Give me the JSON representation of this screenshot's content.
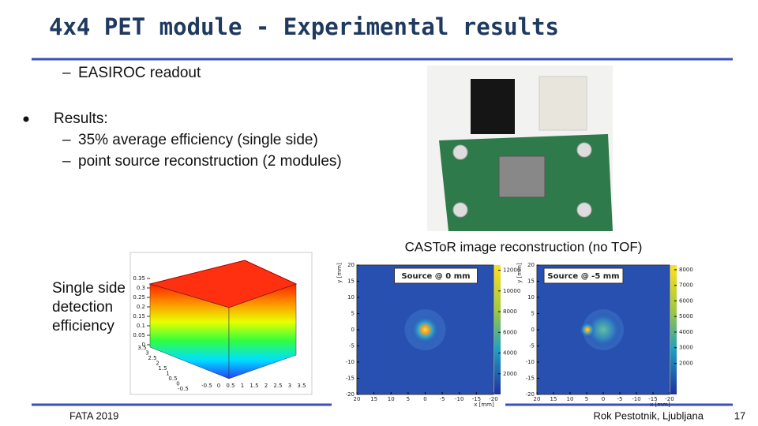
{
  "header": {
    "title": "4x4 PET module - Experimental results"
  },
  "bullets": {
    "sub_top": "EASIROC readout",
    "main": "Results:",
    "sub": [
      "35% average efficiency (single side)",
      "point source reconstruction (2 modules)"
    ]
  },
  "caption": "CASToR image reconstruction (no TOF)",
  "efficiency_label": [
    "Single side",
    "detection",
    "efficiency"
  ],
  "efficiency_plot": {
    "zticks": [
      0.35,
      0.3,
      0.25,
      0.2,
      0.15,
      0.1,
      0.05,
      0
    ],
    "xticks": [
      -0.5,
      0,
      0.5,
      1,
      1.5,
      2,
      2.5,
      3,
      3.5
    ],
    "yticks": [
      3.5,
      3,
      2.5,
      2,
      1.5,
      1,
      0.5,
      0,
      -0.5
    ]
  },
  "images": [
    {
      "label": "Source @ 0 mm",
      "ylabel": "y [mm]",
      "xlabel": "x [mm]",
      "xlim": [
        20,
        -20
      ],
      "ylim": [
        -20,
        20
      ],
      "xticks": [
        20,
        15,
        10,
        5,
        0,
        -5,
        -10,
        -15,
        -20
      ],
      "yticks": [
        20,
        15,
        10,
        5,
        0,
        -5,
        -10,
        -15,
        -20
      ],
      "zlim": [
        0,
        12500
      ],
      "zticks": [
        12000,
        10000,
        8000,
        6000,
        4000,
        2000
      ]
    },
    {
      "label": "Source @ -5 mm",
      "ylabel": "y [mm]",
      "xlabel": "x [mm]",
      "xlim": [
        20,
        -20
      ],
      "ylim": [
        -20,
        20
      ],
      "xticks": [
        20,
        15,
        10,
        5,
        0,
        -5,
        -10,
        -15,
        -20
      ],
      "yticks": [
        20,
        15,
        10,
        5,
        0,
        -5,
        -10,
        -15,
        -20
      ],
      "zlim": [
        0,
        8300
      ],
      "zticks": [
        8000,
        7000,
        6000,
        5000,
        4000,
        3000,
        2000
      ]
    }
  ],
  "footer": {
    "left": "FATA 2019",
    "right": "Rok Pestotnik, Ljubljana",
    "page": "17"
  }
}
